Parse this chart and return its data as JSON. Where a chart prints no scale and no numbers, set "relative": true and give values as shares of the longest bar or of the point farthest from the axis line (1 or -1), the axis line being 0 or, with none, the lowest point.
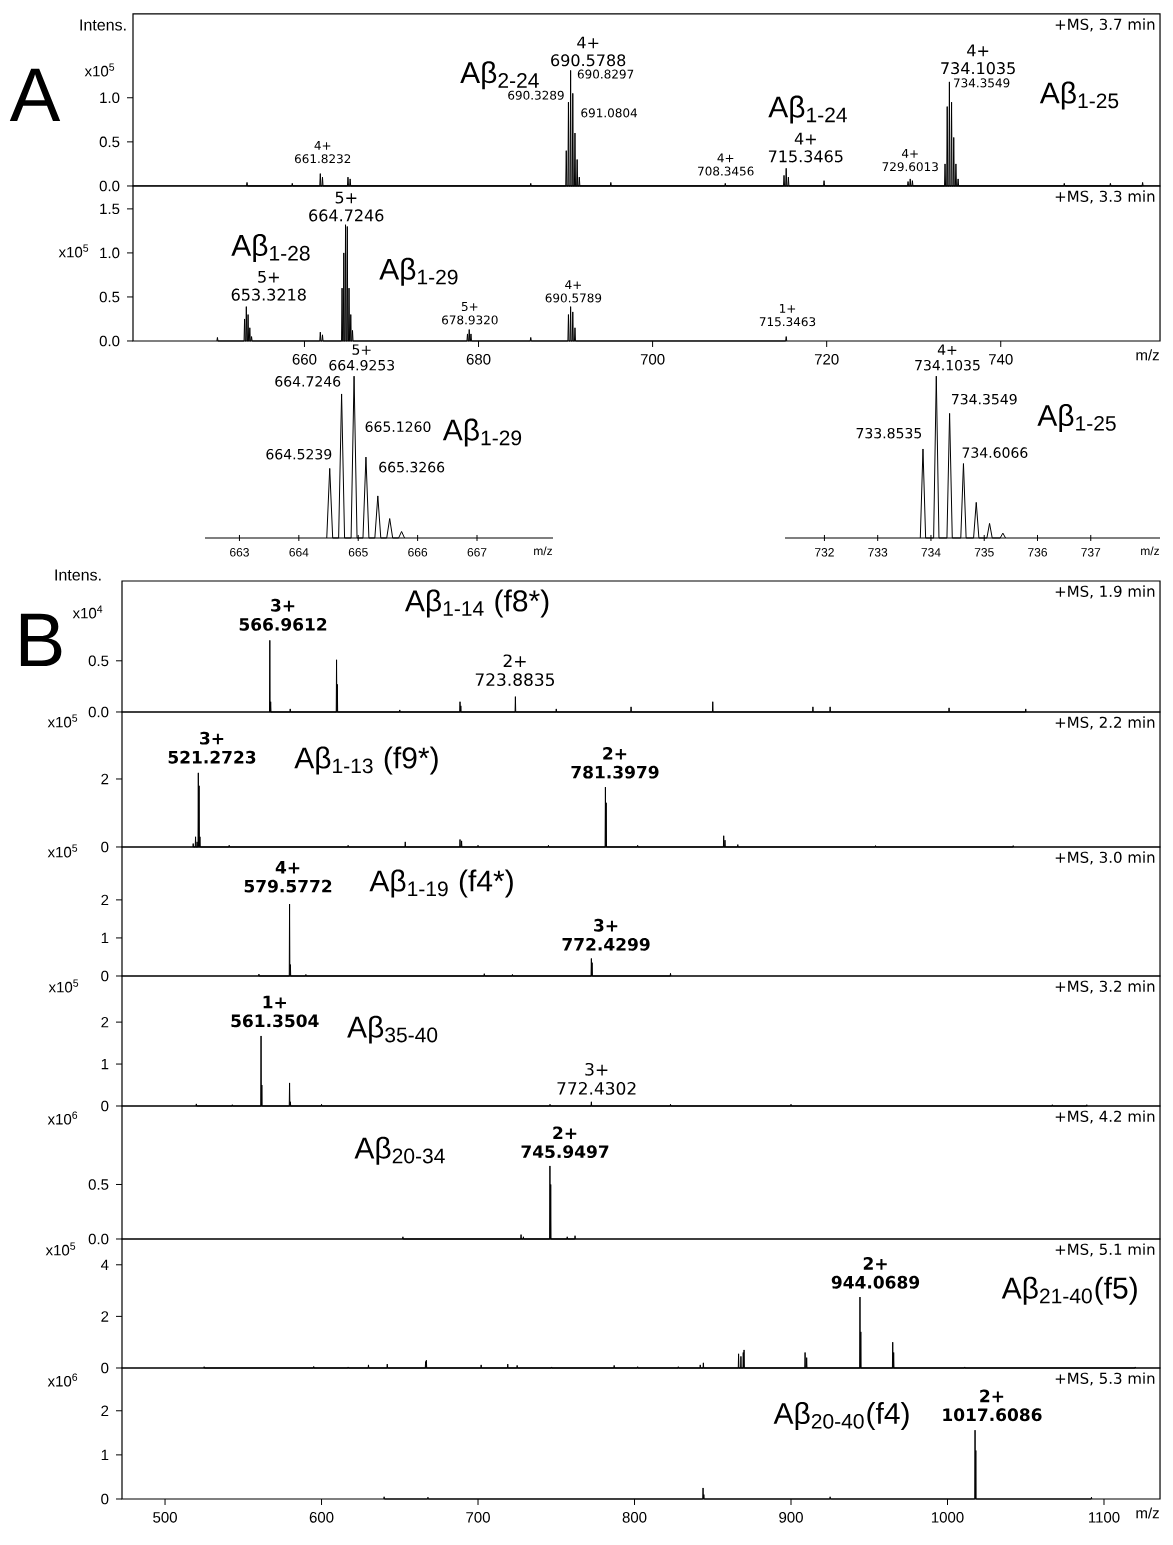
{
  "chart_data": [
    {
      "type": "line",
      "title": "+MS, 3.7 min",
      "ylabel": "x10$^{5}$",
      "color": "#000000",
      "xlim": [
        640.3,
        758.3
      ],
      "ylim": [
        0,
        1.95
      ],
      "yticks": [
        {
          "value": 0,
          "label": "0.0"
        },
        {
          "value": 0.5,
          "label": "0.5"
        },
        {
          "value": 1,
          "label": "1.0"
        }
      ],
      "tick_labels": "y",
      "x": [
        653.34,
        653.4,
        653.46,
        658.54,
        658.6,
        658.66,
        661.76,
        661.82,
        661.88,
        662.01,
        662.07,
        662.13,
        664.94,
        665.0,
        665.06,
        665.19,
        665.25,
        665.31,
        685.94,
        686.0,
        686.06,
        690.02,
        690.08,
        690.14,
        690.27,
        690.33,
        690.39,
        690.52,
        690.58,
        690.64,
        690.77,
        690.83,
        690.89,
        691.02,
        691.08,
        691.14,
        691.27,
        691.33,
        691.39,
        691.52,
        691.58,
        691.64,
        695.14,
        695.2,
        695.26,
        708.29,
        708.35,
        708.41,
        715.04,
        715.1,
        715.16,
        715.29,
        715.35,
        715.41,
        715.54,
        715.6,
        715.66,
        719.64,
        719.7,
        719.76,
        729.29,
        729.35,
        729.41,
        729.54,
        729.6,
        729.66,
        729.79,
        729.85,
        729.91,
        733.54,
        733.6,
        733.66,
        733.79,
        733.85,
        733.91,
        734.04,
        734.1,
        734.16,
        734.29,
        734.35,
        734.41,
        734.54,
        734.6,
        734.66,
        734.79,
        734.85,
        734.91,
        735.04,
        735.1,
        735.16,
        747.24,
        747.3,
        747.36,
        752.54,
        752.6,
        752.66,
        756.24,
        756.3,
        756.36
      ],
      "values": [
        0,
        0.04,
        0,
        0,
        0.03,
        0,
        0,
        0.14,
        0,
        0,
        0.1,
        0,
        0,
        0.1,
        0,
        0,
        0.08,
        0,
        0,
        0.03,
        0,
        0,
        0.4,
        0,
        0,
        0.95,
        0,
        0,
        1.31,
        0,
        0,
        1.05,
        0,
        0,
        0.6,
        0,
        0,
        0.3,
        0,
        0,
        0.1,
        0,
        0,
        0.04,
        0,
        0,
        0.03,
        0,
        0,
        0.12,
        0,
        0,
        0.2,
        0,
        0,
        0.1,
        0,
        0,
        0.06,
        0,
        0,
        0.05,
        0,
        0,
        0.08,
        0,
        0,
        0.06,
        0,
        0,
        0.25,
        0,
        0,
        0.9,
        0,
        0,
        1.18,
        0,
        0,
        0.95,
        0,
        0,
        0.55,
        0,
        0,
        0.25,
        0,
        0,
        0.08,
        0,
        0,
        0.03,
        0,
        0,
        0.03,
        0,
        0,
        0.04,
        0
      ],
      "annotations": [
        "A",
        "Intens.",
        "Aβ$_{2-24}$",
        "4+",
        "690.5788",
        "690.8297",
        "690.3289",
        "691.0804",
        "4+",
        "661.8232",
        "4+",
        "708.3456",
        "Aβ$_{1-24}$",
        "4+",
        "715.3465",
        "4+",
        "729.6013",
        "4+",
        "734.1035",
        "734.3549",
        "Aβ$_{1-25}$"
      ]
    },
    {
      "type": "line",
      "title": "+MS, 3.3 min",
      "ylabel": "x10$^{5}$",
      "xlabel": "m/z",
      "color": "#000000",
      "xlim": [
        640.3,
        758.3
      ],
      "xticks": [
        660,
        680,
        700,
        720,
        740
      ],
      "ylim": [
        0,
        1.76
      ],
      "yticks": [
        {
          "value": 0,
          "label": "0.0"
        },
        {
          "value": 0.5,
          "label": "0.5"
        },
        {
          "value": 1,
          "label": "1.0"
        },
        {
          "value": 1.5,
          "label": "1.5"
        }
      ],
      "x": [
        649.94,
        650,
        650.06,
        653.06,
        653.12,
        653.18,
        653.26,
        653.32,
        653.38,
        653.46,
        653.52,
        653.58,
        653.66,
        653.72,
        653.78,
        653.86,
        653.92,
        653.98,
        661.76,
        661.82,
        661.88,
        662.01,
        662.07,
        662.13,
        664.26,
        664.32,
        664.38,
        664.46,
        664.52,
        664.58,
        664.66,
        664.72,
        664.78,
        664.86,
        664.92,
        664.98,
        665.06,
        665.12,
        665.18,
        665.26,
        665.32,
        665.38,
        665.46,
        665.52,
        665.58,
        678.67,
        678.73,
        678.79,
        678.87,
        678.93,
        678.99,
        679.07,
        679.13,
        679.19,
        685.94,
        686,
        686.06,
        690.27,
        690.33,
        690.39,
        690.52,
        690.58,
        690.64,
        690.77,
        690.83,
        690.89,
        691.02,
        691.08,
        691.14,
        715.29,
        715.35,
        715.41
      ],
      "values": [
        0,
        0.04,
        0,
        0,
        0.25,
        0,
        0,
        0.39,
        0,
        0,
        0.3,
        0,
        0,
        0.15,
        0,
        0,
        0.05,
        0,
        0,
        0.1,
        0,
        0,
        0.07,
        0,
        0,
        0.6,
        0,
        0,
        1,
        0,
        0,
        1.32,
        0,
        0,
        1.3,
        0,
        0,
        0.6,
        0,
        0,
        0.3,
        0,
        0,
        0.12,
        0,
        0,
        0.08,
        0,
        0,
        0.13,
        0,
        0,
        0.08,
        0,
        0,
        0.04,
        0,
        0,
        0.3,
        0,
        0,
        0.39,
        0,
        0,
        0.33,
        0,
        0,
        0.15,
        0,
        0,
        0.05,
        0
      ],
      "annotations": [
        "Aβ$_{1-28}$",
        "5+",
        "653.3218",
        "5+",
        "664.7246",
        "Aβ$_{1-29}$",
        "5+",
        "678.9320",
        "4+",
        "690.5789",
        "1+",
        "715.3463"
      ]
    },
    {
      "type": "line",
      "relative": true,
      "xlabel": "m/z",
      "color": "#000000",
      "xlim": [
        662.42,
        668.28
      ],
      "xticks": [
        663,
        664,
        665,
        666,
        667
      ],
      "tick_labels": "x",
      "x": [
        664.47,
        664.52,
        664.57,
        664.67,
        664.72,
        664.77,
        664.88,
        664.93,
        664.98,
        665.08,
        665.13,
        665.18,
        665.28,
        665.33,
        665.38,
        665.48,
        665.53,
        665.58,
        665.68,
        665.73,
        665.78
      ],
      "values": [
        0,
        0.43,
        0,
        0,
        0.89,
        0,
        0,
        1,
        0,
        0,
        0.5,
        0,
        0,
        0.26,
        0,
        0,
        0.12,
        0,
        0,
        0.04,
        0
      ],
      "annotations": [
        "5+",
        "664.9253",
        "664.7246",
        "665.1260",
        "Aβ$_{1-29}$",
        "664.5239",
        "665.3266"
      ]
    },
    {
      "type": "line",
      "relative": true,
      "xlabel": "m/z",
      "color": "#000000",
      "xlim": [
        731.26,
        738.3
      ],
      "xticks": [
        732,
        733,
        734,
        735,
        736,
        737
      ],
      "tick_labels": "x",
      "x": [
        733.8,
        733.85,
        733.9,
        734.05,
        734.1,
        734.15,
        734.3,
        734.35,
        734.4,
        734.56,
        734.61,
        734.66,
        734.8,
        734.85,
        734.9,
        735.05,
        735.1,
        735.15,
        735.3,
        735.35,
        735.4
      ],
      "values": [
        0,
        0.55,
        0,
        0,
        1,
        0,
        0,
        0.77,
        0,
        0,
        0.46,
        0,
        0,
        0.22,
        0,
        0,
        0.09,
        0,
        0,
        0.03,
        0
      ],
      "annotations": [
        "4+",
        "734.1035",
        "734.3549",
        "733.8535",
        "734.6066",
        "Aβ$_{1-25}$"
      ]
    },
    {
      "type": "line",
      "title": "+MS, 1.9 min",
      "ylabel": "x10$^{4}$",
      "color": "#000000",
      "xlim": [
        472.5,
        1135.8
      ],
      "ylim": [
        0,
        1.28
      ],
      "yticks": [
        {
          "value": 0,
          "label": "0.0"
        },
        {
          "value": 0.5,
          "label": "0.5"
        }
      ],
      "tick_labels": "y",
      "x": [
        566.76,
        566.96,
        567.16,
        567.3,
        567.5,
        567.7,
        579.8,
        580,
        580.2,
        609.4,
        609.6,
        609.8,
        609.9,
        610.1,
        610.3,
        649.8,
        650,
        650.2,
        688.3,
        688.5,
        688.7,
        688.8,
        689,
        689.2,
        723.68,
        723.88,
        724.08,
        749.8,
        750,
        750.2,
        797.6,
        797.8,
        798,
        849.8,
        850,
        850.2,
        913.8,
        914,
        914.2,
        924.8,
        925,
        925.2,
        1000.8,
        1001,
        1001.2,
        1049.8,
        1050,
        1050.2
      ],
      "values": [
        0,
        0.7,
        0,
        0,
        0.1,
        0,
        0,
        0.03,
        0,
        0,
        0.51,
        0,
        0,
        0.27,
        0,
        0,
        0.02,
        0,
        0,
        0.1,
        0,
        0,
        0.06,
        0,
        0,
        0.15,
        0,
        0,
        0.03,
        0,
        0,
        0.05,
        0,
        0,
        0.1,
        0,
        0,
        0.05,
        0,
        0,
        0.05,
        0,
        0,
        0.04,
        0,
        0,
        0.03,
        0
      ],
      "annotations": [
        "B",
        "Intens.",
        "3+",
        "566.9612",
        "Aβ$_{1-14}$ (f8*)",
        "2+",
        "723.8835"
      ]
    },
    {
      "type": "line",
      "title": "+MS, 2.2 min",
      "ylabel": "x10$^{5}$",
      "color": "#000000",
      "xlim": [
        472.5,
        1135.8
      ],
      "ylim": [
        0,
        3.97
      ],
      "yticks": [
        0,
        2
      ],
      "tick_labels": "y",
      "x": [
        517.8,
        518,
        518.2,
        519.3,
        519.5,
        519.7,
        520.3,
        520.5,
        520.7,
        521.07,
        521.27,
        521.47,
        521.57,
        521.77,
        521.97,
        522.1,
        522.3,
        522.5,
        540.8,
        541,
        541.2,
        616.8,
        617,
        617.2,
        653.3,
        653.5,
        653.7,
        688.3,
        688.5,
        688.7,
        689.3,
        689.5,
        689.7,
        699.8,
        700,
        700.2,
        744.8,
        745,
        745.2,
        781.2,
        781.4,
        781.6,
        781.7,
        781.9,
        782.1,
        801.8,
        802,
        802.2,
        856.8,
        857,
        857.2,
        857.6,
        857.8,
        858,
        865.8,
        866,
        866.2,
        953.8,
        954,
        954.2,
        1041.8,
        1042,
        1042.2
      ],
      "values": [
        0,
        0.1,
        0,
        0,
        0.3,
        0,
        0,
        0.15,
        0,
        0,
        2.18,
        0,
        0,
        1.8,
        0,
        0,
        0.3,
        0,
        0,
        0.05,
        0,
        0,
        0.05,
        0,
        0,
        0.15,
        0,
        0,
        0.22,
        0,
        0,
        0.18,
        0,
        0,
        0.05,
        0,
        0,
        0.05,
        0,
        0,
        1.76,
        0,
        0,
        1.3,
        0,
        0,
        0.05,
        0,
        0,
        0.33,
        0,
        0,
        0.2,
        0,
        0,
        0.07,
        0,
        0,
        0.04,
        0,
        0,
        0.04,
        0
      ],
      "annotations": [
        "3+",
        "521.2723",
        "Aβ$_{1-13}$ (f9*)",
        "2+",
        "781.3979"
      ]
    },
    {
      "type": "line",
      "title": "+MS, 3.0 min",
      "ylabel": "x10$^{5}$",
      "color": "#000000",
      "xlim": [
        472.5,
        1135.8
      ],
      "ylim": [
        0,
        3.39
      ],
      "yticks": [
        0,
        1,
        2
      ],
      "tick_labels": "y",
      "x": [
        559.8,
        560,
        560.2,
        579.38,
        579.58,
        579.78,
        579.9,
        580.1,
        580.3,
        589.8,
        590,
        590.2,
        703.8,
        704,
        704.2,
        721.8,
        722,
        722.2,
        772.23,
        772.43,
        772.63,
        772.7,
        772.9,
        773.1,
        822.8,
        823,
        823.2
      ],
      "values": [
        0,
        0.05,
        0,
        0,
        1.89,
        0,
        0,
        0.3,
        0,
        0,
        0.04,
        0,
        0,
        0.06,
        0,
        0,
        0.04,
        0,
        0,
        0.46,
        0,
        0,
        0.35,
        0,
        0,
        0.07,
        0
      ],
      "annotations": [
        "4+",
        "579.5772",
        "Aβ$_{1-19}$ (f4*)",
        "3+",
        "772.4299"
      ]
    },
    {
      "type": "line",
      "title": "+MS, 3.2 min",
      "ylabel": "x10$^{5}$",
      "color": "#000000",
      "xlim": [
        472.5,
        1135.8
      ],
      "ylim": [
        0,
        3.1
      ],
      "yticks": [
        0,
        1,
        2
      ],
      "tick_labels": "y",
      "x": [
        519.8,
        520,
        520.2,
        542.8,
        543,
        543.2,
        561.15,
        561.35,
        561.55,
        561.65,
        561.85,
        562.05,
        579.38,
        579.58,
        579.78,
        579.9,
        580.1,
        580.3,
        599.8,
        600,
        600.2,
        745.8,
        746,
        746.2,
        772.23,
        772.43,
        772.63,
        822.8,
        823,
        823.2,
        899.8,
        900,
        900.2,
        1066.8,
        1067,
        1067.2,
        1088.8,
        1089,
        1089.2
      ],
      "values": [
        0,
        0.05,
        0,
        0,
        0.03,
        0,
        0,
        1.67,
        0,
        0,
        0.5,
        0,
        0,
        0.55,
        0,
        0,
        0.1,
        0,
        0,
        0.04,
        0,
        0,
        0.04,
        0,
        0,
        0.1,
        0,
        0,
        0.04,
        0,
        0,
        0.04,
        0,
        0,
        0.03,
        0,
        0,
        0.03,
        0
      ],
      "annotations": [
        "1+",
        "561.3504",
        "Aβ$_{35-40}$",
        "3+",
        "772.4302"
      ]
    },
    {
      "type": "line",
      "title": "+MS, 4.2 min",
      "ylabel": "x10$^{6}$",
      "color": "#000000",
      "xlim": [
        472.5,
        1135.8
      ],
      "ylim": [
        0,
        1.22
      ],
      "yticks": [
        {
          "value": 0,
          "label": "0.0"
        },
        {
          "value": 0.5,
          "label": "0.5"
        }
      ],
      "tick_labels": "y",
      "x": [
        651.8,
        652,
        652.2,
        727.3,
        727.5,
        727.7,
        728.8,
        729,
        729.2,
        745.75,
        745.95,
        746.15,
        746.25,
        746.45,
        746.65,
        756.8,
        757,
        757.2,
        761.8,
        762,
        762.2
      ],
      "values": [
        0,
        0.02,
        0,
        0,
        0.04,
        0,
        0,
        0.02,
        0,
        0,
        0.67,
        0,
        0,
        0.5,
        0,
        0,
        0.02,
        0,
        0,
        0.03,
        0
      ],
      "annotations": [
        "Aβ$_{20-34}$",
        "2+",
        "745.9497"
      ]
    },
    {
      "type": "line",
      "title": "+MS, 5.1 min",
      "ylabel": "x10$^{5}$",
      "color": "#000000",
      "xlim": [
        472.5,
        1135.8
      ],
      "ylim": [
        0,
        5.0
      ],
      "yticks": [
        0,
        2,
        4
      ],
      "tick_labels": "y",
      "x": [
        524.8,
        525,
        525.2,
        594.8,
        595,
        595.2,
        616.8,
        617,
        617.2,
        629.8,
        630,
        630.2,
        641.8,
        642,
        642.2,
        666.3,
        666.5,
        666.7,
        666.8,
        667,
        667.2,
        701.8,
        702,
        702.2,
        718.8,
        719,
        719.2,
        724.8,
        725,
        725.2,
        746.8,
        747,
        747.2,
        786.8,
        787,
        787.2,
        801.8,
        802,
        802.2,
        827.8,
        828,
        828.2,
        841.8,
        842,
        842.2,
        843.8,
        844,
        844.2,
        866.3,
        866.5,
        866.7,
        867.8,
        868,
        868.2,
        869.3,
        869.5,
        869.7,
        869.8,
        870,
        870.2,
        908.8,
        909,
        909.2,
        909.8,
        910,
        910.2,
        943.87,
        944.07,
        944.27,
        944.4,
        944.6,
        944.8,
        964.8,
        965,
        965.2,
        965.4,
        965.6,
        965.8,
        1010.8,
        1011,
        1011.2,
        1119.8,
        1120,
        1120.2
      ],
      "values": [
        0,
        0.05,
        0,
        0,
        0.06,
        0,
        0,
        0.04,
        0,
        0,
        0.12,
        0,
        0,
        0.15,
        0,
        0,
        0.25,
        0,
        0,
        0.3,
        0,
        0,
        0.12,
        0,
        0,
        0.15,
        0,
        0,
        0.1,
        0,
        0,
        0.04,
        0,
        0,
        0.1,
        0,
        0,
        0.05,
        0,
        0,
        0.05,
        0,
        0,
        0.12,
        0,
        0,
        0.2,
        0,
        0,
        0.55,
        0,
        0,
        0.45,
        0,
        0,
        0.6,
        0,
        0,
        0.7,
        0,
        0,
        0.6,
        0,
        0,
        0.4,
        0,
        0,
        2.75,
        0,
        0,
        1.4,
        0,
        0,
        1.0,
        0,
        0,
        0.6,
        0,
        0,
        0.04,
        0,
        0,
        0.04,
        0
      ],
      "annotations": [
        "2+",
        "944.0689",
        "Aβ$_{21-40}$(f5)"
      ]
    },
    {
      "type": "line",
      "title": "+MS, 5.3 min",
      "ylabel": "x10$^{6}$",
      "xlabel": "m/z",
      "color": "#000000",
      "xlim": [
        472.5,
        1135.8
      ],
      "xticks": [
        500,
        600,
        700,
        800,
        900,
        1000,
        1100
      ],
      "ylim": [
        0,
        2.97
      ],
      "yticks": [
        0,
        1,
        2
      ],
      "x": [
        639.8,
        640,
        640.2,
        667.8,
        668,
        668.2,
        843.6,
        843.8,
        844,
        844.1,
        844.3,
        844.5,
        924.8,
        925,
        925.2,
        1017.41,
        1017.61,
        1017.81,
        1017.9,
        1018.1,
        1018.3,
        1091.8,
        1092,
        1092.2
      ],
      "values": [
        0,
        0.05,
        0,
        0,
        0.04,
        0,
        0,
        0.25,
        0,
        0,
        0.1,
        0,
        0,
        0.05,
        0,
        0,
        1.56,
        0,
        0,
        1.1,
        0,
        0,
        0.04,
        0
      ],
      "annotations": [
        "Aβ$_{20-40}$(f4)",
        "2+",
        "1017.6086"
      ]
    }
  ]
}
